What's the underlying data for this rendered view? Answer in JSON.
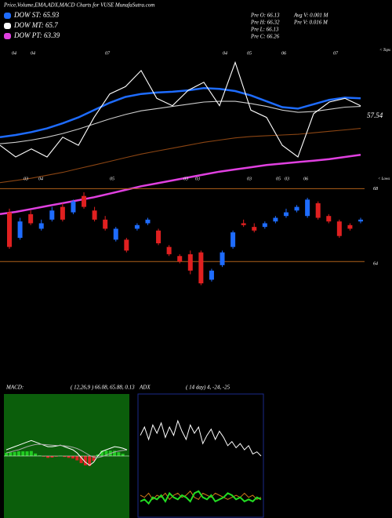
{
  "header": {
    "title": "Price,Volume,EMA,ADX,MACD Charts for VUSE MunafaSutra.com",
    "legend": [
      {
        "name": "DOW ST: 65.93",
        "color": "#1e6cff"
      },
      {
        "name": "DOW MT: 65.7",
        "color": "#ffffff"
      },
      {
        "name": "DOW PT: 63.39",
        "color": "#e040e0"
      }
    ],
    "info": [
      "Pre  O: 66.13",
      "Pre  H: 66.32",
      "Pre  L: 66.13",
      "Pre  C: 66.26",
      "Avg V: 0.001 M",
      "Pre  V: 0.016 M"
    ]
  },
  "chart_data": [
    {
      "type": "line",
      "categories": [
        null,
        null,
        null,
        null,
        null,
        null,
        null,
        null,
        null,
        null,
        null,
        null,
        null,
        null,
        null,
        null,
        null,
        null,
        null,
        null,
        null,
        null,
        null,
        null
      ],
      "ylim": [
        50,
        80
      ],
      "series": [
        {
          "color": "#8b4513",
          "values": [
            61.5,
            61.8,
            62.1,
            62.5,
            62.9,
            63.4,
            63.9,
            64.4,
            64.9,
            65.4,
            65.8,
            66.2,
            66.6,
            67,
            67.3,
            67.6,
            67.8,
            67.9,
            68,
            68.1,
            68.3,
            68.5,
            68.7,
            68.9
          ]
        },
        {
          "color": "#e040e0",
          "values": [
            57.2,
            57.5,
            57.9,
            58.3,
            58.7,
            59.1,
            59.5,
            60,
            60.5,
            61,
            61.4,
            61.8,
            62.2,
            62.6,
            63,
            63.3,
            63.6,
            63.9,
            64.1,
            64.3,
            64.5,
            64.7,
            65,
            65.3
          ]
        },
        {
          "color": "#cccccc",
          "values": [
            66.8,
            67,
            67.3,
            67.7,
            68.2,
            68.8,
            69.5,
            70.2,
            70.8,
            71.3,
            71.6,
            71.9,
            72.2,
            72.5,
            72.6,
            72.6,
            72.3,
            71.9,
            71.4,
            71.1,
            71.2,
            71.5,
            71.8,
            71.9
          ]
        },
        {
          "color": "#1e6cff",
          "values": [
            67.7,
            68,
            68.4,
            68.9,
            69.6,
            70.4,
            71.4,
            72.4,
            73.2,
            73.6,
            73.8,
            73.9,
            74.1,
            74.4,
            74.3,
            74,
            73.4,
            72.6,
            71.8,
            71.6,
            72.2,
            72.8,
            73.1,
            73
          ]
        },
        {
          "color": "#ffffff",
          "values": [
            66.6,
            65,
            66.1,
            65,
            67.7,
            66.6,
            70.4,
            73.6,
            74.6,
            76.8,
            73,
            72,
            74.1,
            75.2,
            72,
            77.9,
            71.4,
            70.4,
            66.6,
            65,
            70.9,
            72.5,
            73,
            72
          ]
        }
      ],
      "annotation": "57.54",
      "top_labels": [
        "04",
        "04",
        "07",
        "04",
        "05",
        "06",
        "07"
      ],
      "top_note": "< Tops",
      "bottom_labels": [
        "03",
        "04",
        "05",
        "03",
        "03",
        "03",
        "05",
        "03",
        "06"
      ],
      "bottom_note": "< Lows"
    },
    {
      "type": "candlestick",
      "categories": [
        null,
        null,
        null,
        null,
        null,
        null,
        null,
        null,
        null,
        null,
        null,
        null,
        null,
        null,
        null,
        null,
        null,
        null,
        null,
        null,
        null,
        null,
        null,
        null,
        null,
        null,
        null,
        null,
        null,
        null,
        null,
        null,
        null,
        null
      ],
      "open": [
        66.7,
        65.3,
        66.6,
        65.8,
        66.3,
        67,
        66.7,
        67.6,
        66.8,
        66.3,
        65.2,
        65.2,
        65.8,
        66.1,
        65.7,
        64.8,
        64.3,
        64.4,
        64.5,
        63,
        63.8,
        64.8,
        66.1,
        65.9,
        65.9,
        66.2,
        66.5,
        66.8,
        66.5,
        67.2,
        66.5,
        66.2,
        66,
        66.2
      ],
      "high": [
        66.9,
        66.4,
        66.8,
        66.3,
        67,
        67.2,
        67.4,
        67.8,
        67,
        66.5,
        65.9,
        65.3,
        66.1,
        66.4,
        65.8,
        64.9,
        64.4,
        64.6,
        64.6,
        63.6,
        64.6,
        65.7,
        66.3,
        66.1,
        66.2,
        66.5,
        66.9,
        67.1,
        67.5,
        67.3,
        66.6,
        66.3,
        66.1,
        66.4
      ],
      "low": [
        64.7,
        65.2,
        66,
        65.7,
        66.2,
        66.2,
        66.6,
        66.9,
        66.2,
        65.7,
        65.1,
        64.5,
        65.7,
        66,
        64.9,
        64.3,
        63.9,
        63.3,
        62.7,
        62.9,
        63.7,
        64.7,
        65.9,
        65.6,
        65.8,
        66.1,
        66.4,
        66.7,
        66.4,
        66.3,
        66.1,
        65.3,
        65.7,
        66.1
      ],
      "close": [
        64.8,
        66.2,
        66.1,
        66.1,
        66.8,
        66.3,
        67.3,
        67,
        66.3,
        65.8,
        65.8,
        64.6,
        66,
        66.3,
        65,
        64.4,
        64,
        63.5,
        62.8,
        63.5,
        64.5,
        65.6,
        66,
        65.7,
        66.1,
        66.4,
        66.7,
        67,
        67.4,
        66.4,
        66.2,
        65.4,
        65.8,
        66.3
      ],
      "up_color": "#1e6cff",
      "down_color": "#e02020",
      "ylim": [
        60,
        70
      ],
      "yticks": [
        64,
        68
      ],
      "grid": true,
      "grid_color": "#b0601a"
    },
    {
      "type": "macd",
      "title": "MACD:",
      "subtitle": "( 12,26,9 ) 66.08, 65.88, 0.13",
      "categories": [
        null,
        null,
        null,
        null,
        null,
        null,
        null,
        null,
        null,
        null,
        null,
        null,
        null,
        null,
        null,
        null,
        null,
        null,
        null,
        null,
        null,
        null,
        null,
        null,
        null,
        null,
        null,
        null,
        null,
        null
      ],
      "ylim": [
        -2,
        2
      ],
      "background": "#0b5e0b",
      "series": [
        {
          "color": "#ffffff",
          "values": [
            0.2,
            0.25,
            0.3,
            0.35,
            0.4,
            0.45,
            0.5,
            0.45,
            0.4,
            0.35,
            0.3,
            0.3,
            0.32,
            0.35,
            0.3,
            0.25,
            0.2,
            0.1,
            -0.05,
            -0.2,
            -0.3,
            -0.2,
            0,
            0.15,
            0.2,
            0.25,
            0.3,
            0.28,
            0.25,
            0.2
          ]
        },
        {
          "color": "#aaaaaa",
          "values": [
            0.1,
            0.13,
            0.17,
            0.2,
            0.25,
            0.3,
            0.34,
            0.37,
            0.38,
            0.37,
            0.36,
            0.35,
            0.34,
            0.34,
            0.33,
            0.31,
            0.28,
            0.24,
            0.18,
            0.1,
            0.02,
            -0.04,
            -0.05,
            -0.02,
            0.03,
            0.08,
            0.13,
            0.16,
            0.18,
            0.19
          ]
        }
      ],
      "histogram": {
        "up_color": "#22cc22",
        "down_color": "#dd2222",
        "values": [
          0.1,
          0.12,
          0.13,
          0.15,
          0.15,
          0.15,
          0.16,
          0.08,
          0.02,
          -0.02,
          -0.06,
          -0.05,
          -0.02,
          0.01,
          -0.03,
          -0.06,
          -0.08,
          -0.14,
          -0.23,
          -0.3,
          -0.32,
          -0.16,
          0.05,
          0.17,
          0.17,
          0.17,
          0.17,
          0.12,
          0.07,
          0.01
        ]
      }
    },
    {
      "type": "adx",
      "title": "ADX",
      "subtitle": "( 14 day) 4, -24, -25",
      "categories": [
        null,
        null,
        null,
        null,
        null,
        null,
        null,
        null,
        null,
        null,
        null,
        null,
        null,
        null,
        null,
        null,
        null,
        null,
        null,
        null,
        null,
        null,
        null,
        null,
        null,
        null,
        null,
        null,
        null,
        null
      ],
      "ylim": [
        0,
        60
      ],
      "background": "#000000",
      "border": "#1a2a8a",
      "series": [
        {
          "color": "#ffffff",
          "values": [
            40,
            44,
            38,
            45,
            41,
            46,
            39,
            44,
            40,
            47,
            42,
            38,
            45,
            41,
            44,
            36,
            40,
            43,
            38,
            42,
            39,
            35,
            37,
            34,
            36,
            33,
            35,
            31,
            32,
            30
          ]
        },
        {
          "color": "#d07a1a",
          "values": [
            11,
            10,
            12,
            9,
            11,
            10,
            12,
            9,
            11,
            12,
            10,
            11,
            13,
            10,
            9,
            12,
            11,
            10,
            12,
            11,
            10,
            9,
            10,
            11,
            10,
            12,
            10,
            11,
            9,
            10
          ]
        },
        {
          "color": "#22dd22",
          "values": [
            8,
            9,
            7,
            10,
            9,
            11,
            8,
            12,
            10,
            9,
            11,
            10,
            8,
            12,
            13,
            10,
            9,
            11,
            8,
            9,
            10,
            12,
            11,
            9,
            10,
            8,
            9,
            8,
            10,
            9
          ]
        }
      ]
    }
  ]
}
